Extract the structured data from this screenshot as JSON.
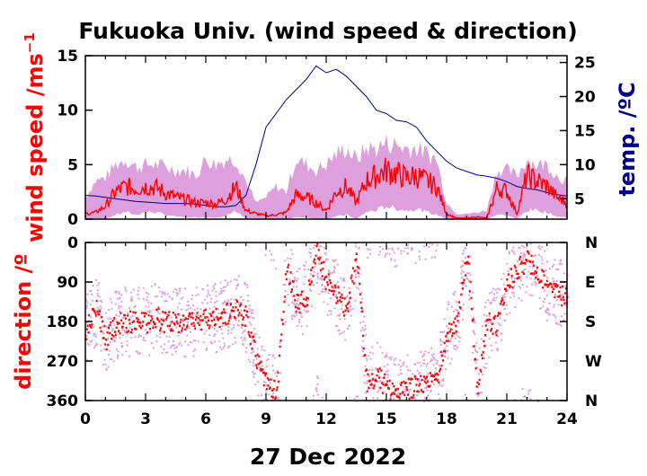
{
  "colors": {
    "speed_line": "#ff0000",
    "speed_band": "#dda0dd",
    "temperature": "#00008b",
    "direction_points": "#ff0000",
    "direction_scatter": "#dda0dd",
    "axes": "#000000"
  },
  "chart_data": [
    {
      "type": "line",
      "title": "Fukuoka Univ. (wind speed & direction)",
      "ylabel": "wind speed /ms",
      "ylabel_superscript": "−1",
      "y2label": "temp. /ºC",
      "xlim": [
        0,
        24
      ],
      "ylim": [
        0,
        15
      ],
      "y2lim": [
        2,
        26
      ],
      "yticks": [
        "0",
        "5",
        "10",
        "15"
      ],
      "y2ticks": [
        "5",
        "10",
        "15",
        "20",
        "25"
      ],
      "series": [
        {
          "name": "wind speed",
          "x": [
            0,
            0.5,
            1,
            1.5,
            2,
            2.5,
            3,
            3.5,
            4,
            4.5,
            5,
            5.5,
            6,
            6.5,
            7,
            7.5,
            8,
            8.5,
            9,
            9.5,
            10,
            10.5,
            11,
            11.5,
            12,
            12.5,
            13,
            13.5,
            14,
            14.5,
            15,
            15.5,
            16,
            16.5,
            17,
            17.5,
            18,
            18.5,
            19,
            19.5,
            20,
            20.5,
            21,
            21.5,
            22,
            22.5,
            23,
            23.5,
            24
          ],
          "values": [
            0.5,
            0.6,
            1.2,
            2.5,
            3.0,
            2.8,
            3.0,
            2.9,
            2.4,
            2.0,
            1.8,
            1.5,
            1.5,
            1.4,
            1.8,
            3.0,
            0.8,
            0.5,
            0.3,
            0.4,
            0.6,
            2.2,
            2.0,
            1.5,
            0.8,
            2.5,
            3.0,
            1.5,
            3.5,
            4.0,
            4.5,
            4.2,
            3.8,
            4.0,
            3.5,
            3.0,
            0.5,
            0.1,
            0.1,
            0.2,
            0.1,
            2.8,
            2.6,
            0.5,
            4.0,
            3.5,
            3.0,
            2.0,
            1.5
          ]
        },
        {
          "name": "wind speed max",
          "x": [
            0,
            0.5,
            1,
            1.5,
            2,
            2.5,
            3,
            3.5,
            4,
            4.5,
            5,
            5.5,
            6,
            6.5,
            7,
            7.5,
            8,
            8.5,
            9,
            9.5,
            10,
            10.5,
            11,
            11.5,
            12,
            12.5,
            13,
            13.5,
            14,
            14.5,
            15,
            15.5,
            16,
            16.5,
            17,
            17.5,
            18,
            18.5,
            19,
            19.5,
            20,
            20.5,
            21,
            21.5,
            22,
            22.5,
            23,
            23.5,
            24
          ],
          "values": [
            2.0,
            3.5,
            3.8,
            5.0,
            5.5,
            4.8,
            5.0,
            5.0,
            4.8,
            4.5,
            4.5,
            4.0,
            5.5,
            5.0,
            5.5,
            5.5,
            3.5,
            1.5,
            2.0,
            3.0,
            2.5,
            5.5,
            5.0,
            4.5,
            5.0,
            6.0,
            6.5,
            5.5,
            6.5,
            6.5,
            7.0,
            6.8,
            6.5,
            6.5,
            6.0,
            5.5,
            1.5,
            0.5,
            0.5,
            0.6,
            0.8,
            4.5,
            4.5,
            4.0,
            5.5,
            5.0,
            5.0,
            4.0,
            3.5
          ]
        },
        {
          "name": "wind speed min",
          "x": [
            0,
            0.5,
            1,
            1.5,
            2,
            2.5,
            3,
            3.5,
            4,
            4.5,
            5,
            5.5,
            6,
            6.5,
            7,
            7.5,
            8,
            8.5,
            9,
            9.5,
            10,
            10.5,
            11,
            11.5,
            12,
            12.5,
            13,
            13.5,
            14,
            14.5,
            15,
            15.5,
            16,
            16.5,
            17,
            17.5,
            18,
            18.5,
            19,
            19.5,
            20,
            20.5,
            21,
            21.5,
            22,
            22.5,
            23,
            23.5,
            24
          ],
          "values": [
            0.0,
            0.0,
            0.0,
            0.5,
            0.8,
            0.5,
            0.8,
            0.8,
            0.5,
            0.3,
            0.2,
            0.2,
            0.2,
            0.2,
            0.3,
            1.0,
            0.0,
            0.0,
            0.0,
            0.0,
            0.0,
            0.2,
            0.2,
            0.0,
            0.0,
            0.3,
            0.5,
            0.0,
            0.8,
            1.0,
            1.5,
            1.2,
            1.0,
            1.2,
            0.8,
            0.5,
            0.0,
            0.0,
            0.0,
            0.0,
            0.0,
            0.5,
            0.5,
            0.0,
            1.0,
            1.0,
            0.8,
            0.3,
            0.2
          ]
        },
        {
          "name": "temperature",
          "axis": "y2",
          "x": [
            0,
            0.5,
            1,
            1.5,
            2,
            2.5,
            3,
            3.5,
            4,
            4.5,
            5,
            5.5,
            6,
            6.5,
            7,
            7.5,
            8,
            8.5,
            9,
            9.5,
            10,
            10.5,
            11,
            11.5,
            12,
            12.5,
            13,
            13.5,
            14,
            14.5,
            15,
            15.5,
            16,
            16.5,
            17,
            17.5,
            18,
            18.5,
            19,
            19.5,
            20,
            20.5,
            21,
            21.5,
            22,
            22.5,
            23,
            23.5,
            24
          ],
          "values": [
            5.5,
            5.4,
            5.2,
            5.0,
            4.8,
            4.6,
            4.5,
            4.4,
            4.3,
            4.3,
            4.3,
            4.2,
            4.0,
            3.8,
            3.8,
            4.0,
            5.5,
            10.0,
            15.5,
            17.5,
            19.5,
            21.0,
            22.5,
            24.5,
            23.5,
            24.0,
            23.0,
            21.5,
            20.0,
            18.0,
            17.5,
            16.5,
            16.3,
            15.5,
            13.5,
            12.0,
            10.5,
            9.5,
            9.0,
            8.5,
            8.3,
            8.0,
            7.5,
            6.8,
            6.5,
            6.3,
            5.9,
            5.6,
            5.4
          ]
        }
      ]
    },
    {
      "type": "scatter",
      "ylabel": "direction /º",
      "xlabel": "27 Dec 2022",
      "xlim": [
        0,
        24
      ],
      "ylim": [
        0,
        360
      ],
      "y_inverted": true,
      "xticks": [
        "0",
        "3",
        "6",
        "9",
        "12",
        "15",
        "18",
        "21",
        "24"
      ],
      "yticks": [
        "0",
        "90",
        "180",
        "270",
        "360"
      ],
      "y2ticks": [
        "N",
        "E",
        "S",
        "W",
        "N"
      ],
      "series": [
        {
          "name": "wind direction",
          "x": [
            0,
            0.5,
            1,
            1.5,
            2,
            2.5,
            3,
            3.5,
            4,
            4.5,
            5,
            5.5,
            6,
            6.5,
            7,
            7.5,
            8,
            8.5,
            9,
            9.5,
            10,
            10.5,
            11,
            11.5,
            12,
            12.5,
            13,
            13.5,
            14,
            14.5,
            15,
            15.5,
            16,
            16.5,
            17,
            17.5,
            18,
            18.5,
            19,
            19.5,
            20,
            20.5,
            21,
            21.5,
            22,
            22.5,
            23,
            23.5,
            24
          ],
          "values": [
            200,
            150,
            220,
            185,
            180,
            175,
            180,
            170,
            180,
            175,
            182,
            178,
            175,
            170,
            160,
            150,
            170,
            260,
            320,
            340,
            60,
            140,
            120,
            20,
            90,
            120,
            150,
            30,
            320,
            300,
            330,
            340,
            330,
            325,
            320,
            310,
            200,
            180,
            20,
            330,
            180,
            185,
            90,
            60,
            40,
            60,
            100,
            110,
            130
          ]
        }
      ]
    }
  ]
}
